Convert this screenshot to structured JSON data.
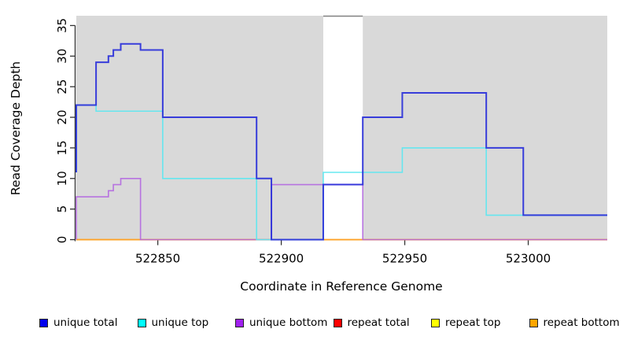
{
  "chart_data": {
    "type": "line",
    "subtype": "step-coverage-plot",
    "title": "",
    "xlabel": "Coordinate in Reference Genome",
    "ylabel": "Read Coverage Depth",
    "xlim": [
      522817,
      523032
    ],
    "ylim": [
      0,
      36.6
    ],
    "x_ticks": [
      522850,
      522900,
      522950,
      523000
    ],
    "y_ticks": [
      0,
      5,
      10,
      15,
      20,
      25,
      30,
      35
    ],
    "grid": "off",
    "panel_bg": "#d9d9d9",
    "unshaded_region": [
      522917,
      522933
    ],
    "gap_border_color": "#808080",
    "axis_color": "#333333",
    "series": [
      {
        "name": "repeat total",
        "line_color": "#e04050",
        "width": 1.5,
        "opacity": 1,
        "steps": [
          [
            522817,
            0
          ],
          [
            523032,
            0
          ]
        ]
      },
      {
        "name": "repeat top",
        "line_color": "#ffe800",
        "width": 1.5,
        "opacity": 1,
        "steps": [
          [
            522817,
            0
          ],
          [
            523032,
            0
          ]
        ]
      },
      {
        "name": "repeat bottom",
        "line_color": "#ffa028",
        "width": 1.6,
        "opacity": 1,
        "steps": [
          [
            522817,
            0
          ],
          [
            522830,
            0
          ],
          [
            522896,
            0
          ],
          [
            522917,
            0
          ],
          [
            522933,
            0
          ],
          [
            522949,
            0
          ],
          [
            522998,
            0
          ],
          [
            523032,
            0
          ]
        ]
      },
      {
        "name": "unique bottom",
        "line_color": "#b264e0",
        "width": 1.6,
        "opacity": 0.88,
        "steps": [
          [
            522817,
            0
          ],
          [
            522830,
            7
          ],
          [
            522832,
            8
          ],
          [
            522835,
            9
          ],
          [
            522843,
            10
          ],
          [
            522896,
            0
          ],
          [
            522933,
            9
          ],
          [
            522998,
            0
          ],
          [
            523032,
            0
          ]
        ]
      },
      {
        "name": "unique top",
        "line_color": "#5fe7f0",
        "width": 1.6,
        "opacity": 0.95,
        "steps": [
          [
            522817,
            11
          ],
          [
            522825,
            22
          ],
          [
            522852,
            21
          ],
          [
            522890,
            10
          ],
          [
            522917,
            0
          ],
          [
            522949,
            11
          ],
          [
            522983,
            15
          ],
          [
            523013,
            4
          ],
          [
            523032,
            4
          ]
        ]
      },
      {
        "name": "unique total",
        "line_color": "#2b30d9",
        "width": 2,
        "opacity": 0.93,
        "steps": [
          [
            522817,
            11
          ],
          [
            522825,
            22
          ],
          [
            522830,
            29
          ],
          [
            522832,
            30
          ],
          [
            522835,
            31
          ],
          [
            522843,
            32
          ],
          [
            522852,
            31
          ],
          [
            522890,
            20
          ],
          [
            522896,
            10
          ],
          [
            522917,
            0
          ],
          [
            522933,
            9
          ],
          [
            522949,
            20
          ],
          [
            522983,
            24
          ],
          [
            522998,
            15
          ],
          [
            523013,
            4
          ],
          [
            523032,
            4
          ]
        ]
      }
    ],
    "legend": {
      "position": "bottom",
      "items": [
        {
          "label": "unique total",
          "color": "#0000ee"
        },
        {
          "label": "unique top",
          "color": "#00ffff"
        },
        {
          "label": "unique bottom",
          "color": "#a020f0"
        },
        {
          "label": "repeat total",
          "color": "#ff0000"
        },
        {
          "label": "repeat top",
          "color": "#ffff00"
        },
        {
          "label": "repeat bottom",
          "color": "#ffa500"
        }
      ]
    }
  }
}
